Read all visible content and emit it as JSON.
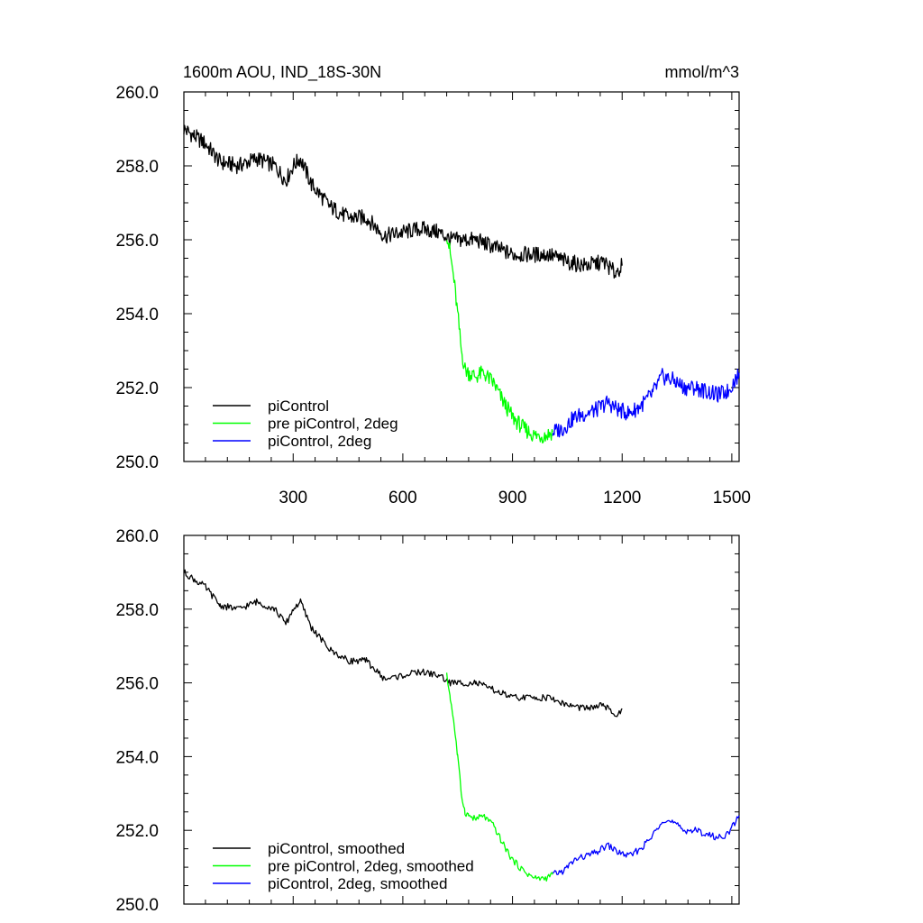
{
  "figure": {
    "title": "1600m AOU, IND_18S-30N",
    "units": "mmol/m^3"
  },
  "chart_data": [
    {
      "type": "line",
      "title": "1600m AOU, IND_18S-30N",
      "units_label": "mmol/m^3",
      "xlabel": "",
      "ylabel": "",
      "xlim": [
        1,
        1520
      ],
      "ylim": [
        250,
        260
      ],
      "x_ticks": [
        300,
        600,
        900,
        1200,
        1500
      ],
      "y_ticks": [
        "250.0",
        "252.0",
        "254.0",
        "256.0",
        "258.0",
        "260.0"
      ],
      "legend_position": "bottom-left",
      "grid": false,
      "series": [
        {
          "name": "piControl",
          "color": "#000000",
          "x": [
            1,
            30,
            60,
            100,
            150,
            200,
            250,
            280,
            300,
            320,
            350,
            400,
            450,
            500,
            550,
            600,
            650,
            700,
            730,
            800,
            850,
            900,
            950,
            1000,
            1050,
            1100,
            1150,
            1180,
            1200
          ],
          "y": [
            259.0,
            258.8,
            258.6,
            258.1,
            258.0,
            258.2,
            258.0,
            257.6,
            258.0,
            258.2,
            257.5,
            256.9,
            256.6,
            256.6,
            256.1,
            256.2,
            256.3,
            256.2,
            256.0,
            256.0,
            255.8,
            255.6,
            255.6,
            255.6,
            255.4,
            255.3,
            255.4,
            255.1,
            255.3
          ]
        },
        {
          "name": "pre piControl, 2deg",
          "color": "#00ff00",
          "x": [
            720,
            730,
            740,
            750,
            760,
            770,
            780,
            800,
            820,
            850,
            870,
            900,
            930,
            960,
            990,
            1010
          ],
          "y": [
            256.2,
            255.6,
            254.9,
            254.0,
            253.0,
            252.5,
            252.4,
            252.3,
            252.4,
            252.1,
            251.7,
            251.2,
            250.9,
            250.7,
            250.7,
            250.8
          ]
        },
        {
          "name": "piControl, 2deg",
          "color": "#0000ff",
          "x": [
            1010,
            1040,
            1070,
            1100,
            1130,
            1160,
            1190,
            1220,
            1250,
            1280,
            1310,
            1340,
            1370,
            1400,
            1430,
            1460,
            1490,
            1520
          ],
          "y": [
            250.8,
            250.9,
            251.2,
            251.3,
            251.4,
            251.6,
            251.4,
            251.3,
            251.5,
            251.8,
            252.3,
            252.2,
            252.0,
            252.0,
            251.9,
            251.8,
            251.9,
            252.4
          ]
        }
      ]
    },
    {
      "type": "line",
      "title": "",
      "xlabel": "",
      "ylabel": "",
      "xlim": [
        1,
        1520
      ],
      "ylim": [
        250,
        260
      ],
      "y_ticks": [
        "250.0",
        "252.0",
        "254.0",
        "256.0",
        "258.0",
        "260.0"
      ],
      "legend_position": "bottom-left",
      "grid": false,
      "series": [
        {
          "name": "piControl, smoothed",
          "color": "#000000",
          "x": [
            1,
            30,
            60,
            100,
            150,
            200,
            250,
            280,
            300,
            320,
            350,
            400,
            450,
            500,
            550,
            600,
            650,
            700,
            730,
            800,
            850,
            900,
            950,
            1000,
            1050,
            1100,
            1150,
            1180,
            1200
          ],
          "y": [
            259.0,
            258.8,
            258.6,
            258.1,
            258.0,
            258.2,
            258.0,
            257.6,
            258.0,
            258.2,
            257.5,
            256.9,
            256.6,
            256.6,
            256.1,
            256.2,
            256.3,
            256.2,
            256.0,
            256.0,
            255.8,
            255.6,
            255.6,
            255.6,
            255.4,
            255.3,
            255.4,
            255.1,
            255.3
          ]
        },
        {
          "name": "pre piControl, 2deg, smoothed",
          "color": "#00ff00",
          "x": [
            720,
            730,
            740,
            750,
            760,
            770,
            780,
            800,
            820,
            850,
            870,
            900,
            930,
            960,
            990,
            1010
          ],
          "y": [
            256.2,
            255.6,
            254.9,
            254.0,
            253.0,
            252.5,
            252.4,
            252.3,
            252.4,
            252.1,
            251.7,
            251.2,
            250.9,
            250.7,
            250.7,
            250.8
          ]
        },
        {
          "name": "piControl, 2deg, smoothed",
          "color": "#0000ff",
          "x": [
            1010,
            1040,
            1070,
            1100,
            1130,
            1160,
            1190,
            1220,
            1250,
            1280,
            1310,
            1340,
            1370,
            1400,
            1430,
            1460,
            1490,
            1520
          ],
          "y": [
            250.8,
            250.9,
            251.2,
            251.3,
            251.4,
            251.6,
            251.4,
            251.3,
            251.5,
            251.8,
            252.3,
            252.2,
            252.0,
            252.0,
            251.9,
            251.8,
            251.9,
            252.4
          ]
        }
      ]
    }
  ]
}
